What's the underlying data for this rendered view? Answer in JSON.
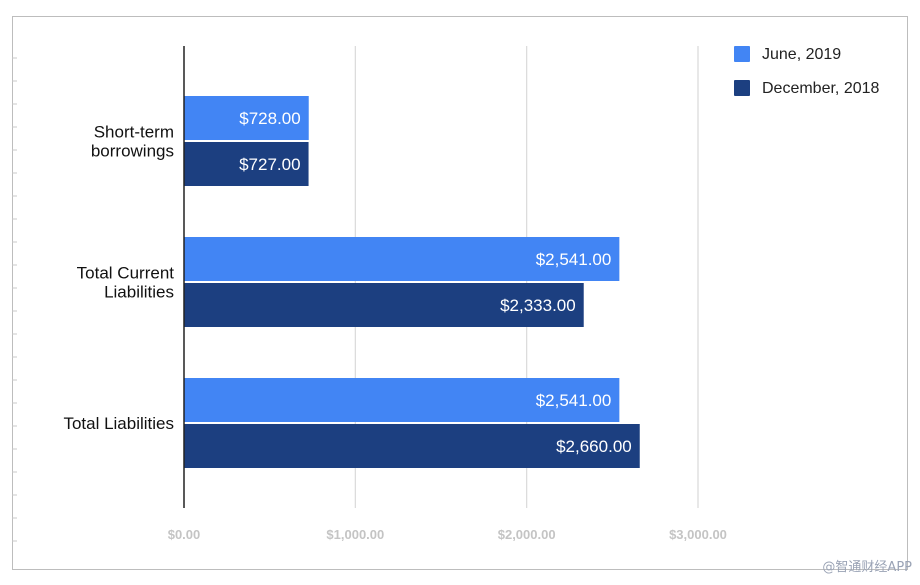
{
  "chart_data": {
    "type": "bar",
    "orientation": "horizontal",
    "categories": [
      "Short-term borrowings",
      "Total Current Liabilities",
      "Total Liabilities"
    ],
    "category_label_lines": [
      [
        "Short-term",
        "borrowings"
      ],
      [
        "Total Current",
        "Liabilities"
      ],
      [
        "Total Liabilities"
      ]
    ],
    "series": [
      {
        "name": "June, 2019",
        "color": "#4285f4",
        "values": [
          728,
          2541,
          2541
        ],
        "labels": [
          "$728.00",
          "$2,541.00",
          "$2,541.00"
        ]
      },
      {
        "name": "December, 2018",
        "color": "#1c3f80",
        "values": [
          727,
          2333,
          2660
        ],
        "labels": [
          "$727.00",
          "$2,333.00",
          "$2,660.00"
        ]
      }
    ],
    "xlim": [
      0,
      3000
    ],
    "x_ticks": [
      0,
      1000,
      2000,
      3000
    ],
    "x_tick_labels": [
      "$0.00",
      "$1,000.00",
      "$2,000.00",
      "$3,000.00"
    ],
    "grid": true,
    "legend_position": "top-right",
    "title": "",
    "xlabel": "",
    "ylabel": ""
  },
  "watermark": "@智通财经APP"
}
